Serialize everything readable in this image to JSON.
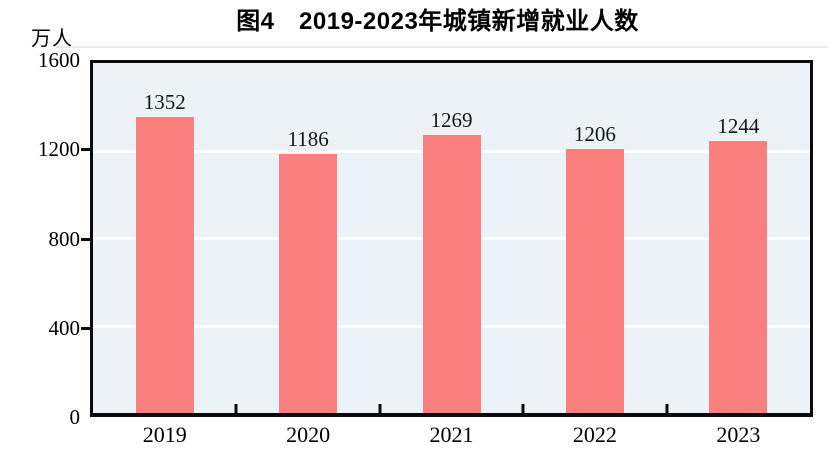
{
  "chart_data": {
    "type": "bar",
    "title": "图4　2019-2023年城镇新增就业人数",
    "ylabel": "万人",
    "xlabel": "",
    "categories": [
      "2019",
      "2020",
      "2021",
      "2022",
      "2023"
    ],
    "values": [
      1352,
      1186,
      1269,
      1206,
      1244
    ],
    "data_labels": [
      "1352",
      "1186",
      "1269",
      "1206",
      "1244"
    ],
    "ylim": [
      0,
      1600
    ],
    "yticks": [
      0,
      400,
      800,
      1200,
      1600
    ],
    "gridlines": {
      "shown": true,
      "orientation": "horizontal",
      "at": [
        400,
        800,
        1200
      ]
    },
    "legend_position": "none",
    "colors": {
      "bar": "#fa8080",
      "plot_background": "#ebf3f8",
      "gridline": "#ffffff",
      "axis_frame": "#0b0b0b",
      "text": "#111111",
      "title_rule": "#eaeaea"
    }
  }
}
